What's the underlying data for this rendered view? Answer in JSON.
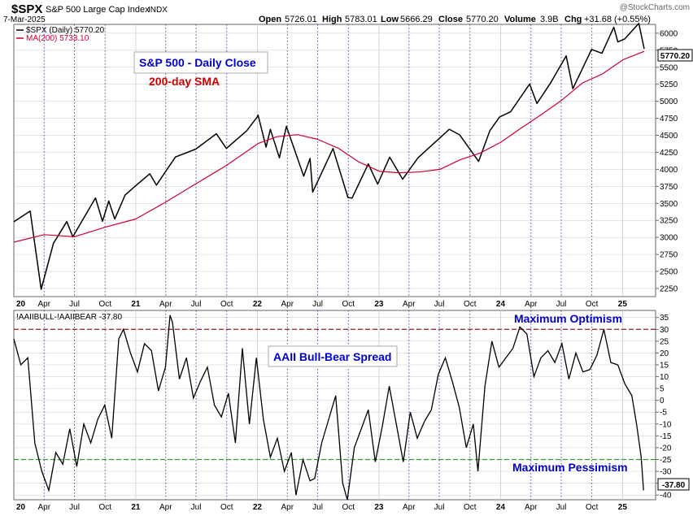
{
  "header": {
    "symbol": "$SPX",
    "name": "S&P 500 Large Cap Index",
    "exchange": "INDX",
    "date": "7-Mar-2025",
    "watermark": "@StockCharts.com",
    "open_label": "Open",
    "open_value": "5726.01",
    "high_label": "High",
    "high_value": "5783.01",
    "low_label": "Low",
    "low_value": "5666.29",
    "close_label": "Close",
    "close_value": "5770.20",
    "volume_label": "Volume",
    "volume_value": "3.9B",
    "chg_label": "Chg",
    "chg_value": "+31.68 (+0.55%)"
  },
  "upper_panel": {
    "legend_price": "$SPX (Daily) 5770.20",
    "legend_ma": "MA(200) 5733.10",
    "annotation_close": "S&P 500 - Daily Close",
    "annotation_sma": "200-day SMA",
    "last_value_badge": "5770.20"
  },
  "lower_panel": {
    "legend": "!AAIIBULL-!AAIIBEAR -37.80",
    "annotation_spread": "AAII Bull-Bear Spread",
    "annotation_optimism": "Maximum Optimism",
    "annotation_pessimism": "Maximum Pessimism",
    "last_value_badge": "-37.80"
  },
  "colors": {
    "price_line": "#000000",
    "ma_line": "#cc0033",
    "optimism_line": "#993333",
    "pessimism_line": "#339933",
    "annotation_blue": "#0000cc",
    "annotation_red": "#cc0000",
    "gridline": "#bbbbbb",
    "quarter_marker": "#3333aa"
  },
  "chart_data": [
    {
      "type": "line",
      "x_label_ticks": [
        "20",
        "Apr",
        "Jul",
        "Oct",
        "21",
        "Apr",
        "Jul",
        "Oct",
        "22",
        "Apr",
        "Jul",
        "Oct",
        "23",
        "Apr",
        "Jul",
        "Oct",
        "24",
        "Apr",
        "Jul",
        "Oct",
        "25"
      ],
      "x_range": [
        "2020-01-01",
        "2025-03-07"
      ],
      "y_ticks": [
        2250,
        2500,
        2750,
        3000,
        3250,
        3500,
        3750,
        4000,
        4250,
        4500,
        4750,
        5000,
        5250,
        5500,
        5750,
        6000
      ],
      "ylim": [
        2130,
        6130
      ],
      "y_position": "right",
      "series": [
        {
          "name": "$SPX (Daily) 5770.20",
          "x": [
            "2020-01-01",
            "2020-02-19",
            "2020-03-23",
            "2020-04-29",
            "2020-06-08",
            "2020-06-26",
            "2020-09-02",
            "2020-09-23",
            "2020-10-12",
            "2020-10-30",
            "2020-11-30",
            "2020-12-31",
            "2021-02-12",
            "2021-03-04",
            "2021-04-30",
            "2021-06-30",
            "2021-08-31",
            "2021-09-30",
            "2021-11-30",
            "2021-12-31",
            "2022-01-03",
            "2022-01-27",
            "2022-02-09",
            "2022-03-08",
            "2022-03-29",
            "2022-05-20",
            "2022-06-08",
            "2022-06-16",
            "2022-08-16",
            "2022-09-30",
            "2022-10-12",
            "2022-11-30",
            "2022-12-28",
            "2023-02-02",
            "2023-03-13",
            "2023-04-28",
            "2023-06-30",
            "2023-07-31",
            "2023-08-31",
            "2023-10-27",
            "2023-11-30",
            "2023-12-29",
            "2024-01-31",
            "2024-03-28",
            "2024-04-19",
            "2024-05-31",
            "2024-07-16",
            "2024-08-05",
            "2024-09-30",
            "2024-10-31",
            "2024-12-06",
            "2024-12-18",
            "2025-01-08",
            "2025-02-19",
            "2025-03-07"
          ],
          "y": [
            3230,
            3386,
            2237,
            2912,
            3232,
            3009,
            3580,
            3237,
            3534,
            3270,
            3621,
            3756,
            3934,
            3768,
            4181,
            4297,
            4523,
            4307,
            4567,
            4766,
            4796,
            4326,
            4587,
            4170,
            4631,
            3900,
            4160,
            3666,
            4305,
            3585,
            3577,
            4080,
            3783,
            4179,
            3855,
            4169,
            4450,
            4588,
            4507,
            4117,
            4568,
            4770,
            4845,
            5254,
            4967,
            5277,
            5667,
            5186,
            5762,
            5705,
            6090,
            5872,
            5918,
            6144,
            5770
          ]
        },
        {
          "name": "MA(200) 5733.10",
          "x": [
            "2020-01-01",
            "2020-04-01",
            "2020-07-01",
            "2020-10-01",
            "2021-01-01",
            "2021-04-01",
            "2021-07-01",
            "2021-10-01",
            "2022-01-03",
            "2022-03-01",
            "2022-05-02",
            "2022-07-01",
            "2022-09-01",
            "2022-11-01",
            "2023-01-03",
            "2023-03-01",
            "2023-05-01",
            "2023-07-03",
            "2023-09-01",
            "2023-11-01",
            "2024-01-02",
            "2024-03-01",
            "2024-05-01",
            "2024-07-01",
            "2024-09-03",
            "2024-11-01",
            "2025-01-02",
            "2025-03-07"
          ],
          "y": [
            2930,
            3040,
            3010,
            3150,
            3270,
            3520,
            3790,
            4060,
            4380,
            4480,
            4510,
            4440,
            4310,
            4110,
            3970,
            3950,
            3960,
            4000,
            4140,
            4240,
            4400,
            4600,
            4800,
            5010,
            5270,
            5400,
            5610,
            5733
          ]
        }
      ]
    },
    {
      "type": "line",
      "x_label_ticks": [
        "20",
        "Apr",
        "Jul",
        "Oct",
        "21",
        "Apr",
        "Jul",
        "Oct",
        "22",
        "Apr",
        "Jul",
        "Oct",
        "23",
        "Apr",
        "Jul",
        "Oct",
        "24",
        "Apr",
        "Jul",
        "Oct",
        "25"
      ],
      "x_range": [
        "2020-01-01",
        "2025-03-07"
      ],
      "y_ticks": [
        -40,
        -35,
        -30,
        -25,
        -20,
        -15,
        -10,
        -5,
        0,
        5,
        10,
        15,
        20,
        25,
        30,
        35
      ],
      "ylim": [
        -42,
        38
      ],
      "y_position": "right",
      "reference_lines": [
        {
          "name": "Maximum Optimism",
          "y": 30
        },
        {
          "name": "Maximum Pessimism",
          "y": -25
        }
      ],
      "series": [
        {
          "name": "!AAIIBULL-!AAIIBEAR -37.80",
          "x": [
            "2020-01-01",
            "2020-01-22",
            "2020-02-12",
            "2020-03-04",
            "2020-03-25",
            "2020-04-15",
            "2020-05-06",
            "2020-05-27",
            "2020-06-17",
            "2020-07-08",
            "2020-07-29",
            "2020-08-19",
            "2020-09-09",
            "2020-09-30",
            "2020-10-21",
            "2020-11-11",
            "2020-11-25",
            "2020-12-16",
            "2021-01-06",
            "2021-01-27",
            "2021-02-17",
            "2021-03-10",
            "2021-03-31",
            "2021-04-14",
            "2021-04-21",
            "2021-05-12",
            "2021-06-02",
            "2021-06-23",
            "2021-07-14",
            "2021-08-04",
            "2021-08-25",
            "2021-09-15",
            "2021-10-06",
            "2021-10-27",
            "2021-11-17",
            "2021-12-08",
            "2021-12-29",
            "2022-01-19",
            "2022-02-09",
            "2022-03-02",
            "2022-03-23",
            "2022-04-13",
            "2022-04-27",
            "2022-05-18",
            "2022-06-08",
            "2022-06-22",
            "2022-07-13",
            "2022-08-03",
            "2022-08-24",
            "2022-09-14",
            "2022-09-28",
            "2022-10-19",
            "2022-11-09",
            "2022-11-30",
            "2022-12-21",
            "2023-01-11",
            "2023-02-01",
            "2023-02-22",
            "2023-03-15",
            "2023-04-05",
            "2023-04-26",
            "2023-05-17",
            "2023-06-07",
            "2023-06-28",
            "2023-07-19",
            "2023-08-09",
            "2023-08-30",
            "2023-09-20",
            "2023-10-11",
            "2023-10-25",
            "2023-11-15",
            "2023-12-06",
            "2023-12-27",
            "2024-01-17",
            "2024-02-07",
            "2024-02-28",
            "2024-03-20",
            "2024-04-10",
            "2024-05-01",
            "2024-05-22",
            "2024-06-12",
            "2024-07-03",
            "2024-07-24",
            "2024-08-14",
            "2024-09-04",
            "2024-09-25",
            "2024-10-16",
            "2024-11-06",
            "2024-11-27",
            "2024-12-18",
            "2025-01-08",
            "2025-01-29",
            "2025-02-12",
            "2025-02-26",
            "2025-03-05"
          ],
          "y": [
            26,
            15,
            18,
            -18,
            -30,
            -38,
            -22,
            -27,
            -12,
            -28,
            -10,
            -18,
            -8,
            -2,
            -16,
            26,
            30,
            20,
            12,
            24,
            21,
            4,
            14,
            36,
            33,
            9,
            18,
            1,
            8,
            14,
            -2,
            -7,
            3,
            -18,
            22,
            -10,
            18,
            -8,
            -24,
            -16,
            -30,
            -22,
            -40,
            -25,
            -34,
            -33,
            -18,
            -8,
            2,
            -35,
            -42,
            -20,
            -12,
            -4,
            -26,
            -11,
            6,
            -10,
            -26,
            -5,
            -16,
            -9,
            -4,
            11,
            18,
            8,
            -3,
            -20,
            -10,
            -30,
            6,
            25,
            14,
            18,
            22,
            31,
            28,
            10,
            18,
            21,
            16,
            24,
            9,
            20,
            12,
            13,
            19,
            30,
            16,
            15,
            7,
            2,
            -10,
            -24,
            -38
          ]
        }
      ]
    }
  ]
}
